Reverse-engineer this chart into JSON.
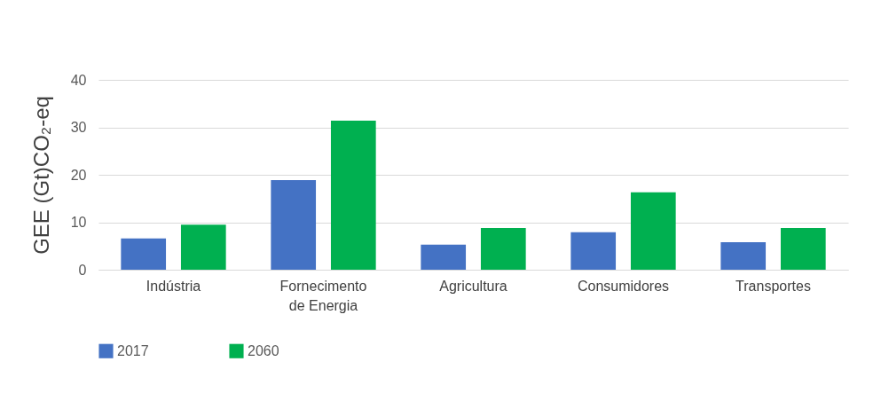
{
  "chart_data": {
    "type": "bar",
    "ylabel": "GEE (Gt)CO₂-eq",
    "categories": [
      "Indústria",
      "Fornecimento de Energia",
      "Agricultura",
      "Consumidores",
      "Transportes"
    ],
    "series": [
      {
        "name": "2017",
        "color": "#4472c4",
        "values": [
          6.6,
          18.9,
          5.3,
          7.9,
          5.8
        ]
      },
      {
        "name": "2060",
        "color": "#00b050",
        "values": [
          9.5,
          31.4,
          8.8,
          16.3,
          8.8
        ]
      }
    ],
    "ylim": [
      0,
      40
    ],
    "yticks": [
      0,
      10,
      20,
      30,
      40
    ],
    "grid": "y",
    "legend": "bottom"
  }
}
